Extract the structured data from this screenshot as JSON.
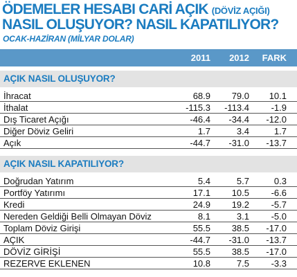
{
  "title": {
    "line1": "ÖDEMELER HESABI CARİ AÇIK",
    "line1_sub": "(DÖVİZ AÇIĞI)",
    "line2": "NASIL OLUŞUYOR? NASIL KAPATILIYOR?",
    "subtitle": "OCAK-HAZİRAN (MİLYAR DOLAR)"
  },
  "columns": [
    "2011",
    "2012",
    "FARK"
  ],
  "section1": {
    "heading": "AÇIK NASIL OLUŞUYOR?",
    "rows": [
      {
        "label": "İhracat",
        "y2011": "68.9",
        "y2012": "79.0",
        "fark": "10.1"
      },
      {
        "label": "İthalat",
        "y2011": "-115.3",
        "y2012": "-113.4",
        "fark": "-1.9"
      },
      {
        "label": "Dış Ticaret Açığı",
        "y2011": "-46.4",
        "y2012": "-34.4",
        "fark": "-12.0"
      },
      {
        "label": "Diğer Döviz Geliri",
        "y2011": "1.7",
        "y2012": "3.4",
        "fark": "1.7"
      },
      {
        "label": "Açık",
        "y2011": "-44.7",
        "y2012": "-31.0",
        "fark": "-13.7"
      }
    ]
  },
  "section2": {
    "heading": "AÇIK NASIL KAPATILIYOR?",
    "rows": [
      {
        "label": "Doğrudan Yatırım",
        "y2011": "5.4",
        "y2012": "5.7",
        "fark": "0.3"
      },
      {
        "label": "Portföy Yatırımı",
        "y2011": "17.1",
        "y2012": "10.5",
        "fark": "-6.6"
      },
      {
        "label": "Kredi",
        "y2011": "24.9",
        "y2012": "19.2",
        "fark": "-5.7"
      },
      {
        "label": "Nereden Geldiği Belli Olmayan Döviz",
        "y2011": "8.1",
        "y2012": "3.1",
        "fark": "-5.0"
      },
      {
        "label": "Toplam Döviz Girişi",
        "y2011": "55.5",
        "y2012": "38.5",
        "fark": "-17.0"
      },
      {
        "label": "AÇIK",
        "y2011": "-44.7",
        "y2012": "-31.0",
        "fark": "-13.7"
      },
      {
        "label": "DÖVİZ GİRİŞİ",
        "y2011": "55.5",
        "y2012": "38.5",
        "fark": "-17.0"
      },
      {
        "label": "REZERVE EKLENEN",
        "y2011": "10.8",
        "y2012": "7.5",
        "fark": "-3.3"
      }
    ]
  },
  "colors": {
    "title": "#1b7cc0",
    "header_bar": "#5a98c8",
    "section_bg": "#e3e3e3"
  }
}
